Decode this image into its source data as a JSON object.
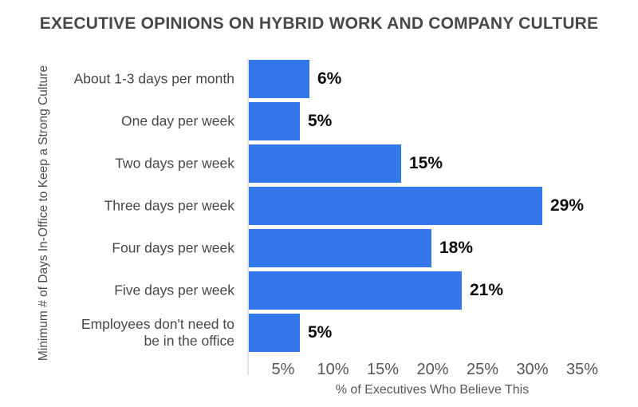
{
  "chart_data": {
    "type": "bar",
    "orientation": "horizontal",
    "title": "EXECUTIVE OPINIONS ON HYBRID WORK AND COMPANY CULTURE",
    "categories": [
      "About 1-3 days per month",
      "One day per week",
      "Two days per week",
      "Three days per week",
      "Four days per week",
      "Five days per week",
      "Employees don't need to\nbe in the office"
    ],
    "values": [
      6,
      5,
      15,
      29,
      18,
      21,
      5
    ],
    "data_labels": [
      "6%",
      "5%",
      "15%",
      "29%",
      "18%",
      "21%",
      "5%"
    ],
    "xlabel": "% of Executives Who Believe This",
    "ylabel": "Minimum # of Days In-Office to Keep a Strong Culture",
    "xticks": [
      "5%",
      "10%",
      "15%",
      "20%",
      "25%",
      "30%",
      "35%"
    ],
    "xlim": [
      0,
      35
    ],
    "grid": false,
    "legend": "none",
    "bar_color": "#3377EB",
    "value_label_color": "#0d0d0d",
    "title_color": "#484848",
    "category_color": "#474747",
    "axis_text_color": "#565656",
    "ylabel_color": "#4d4d4d",
    "axis_line_color": "#e3e3e3"
  }
}
